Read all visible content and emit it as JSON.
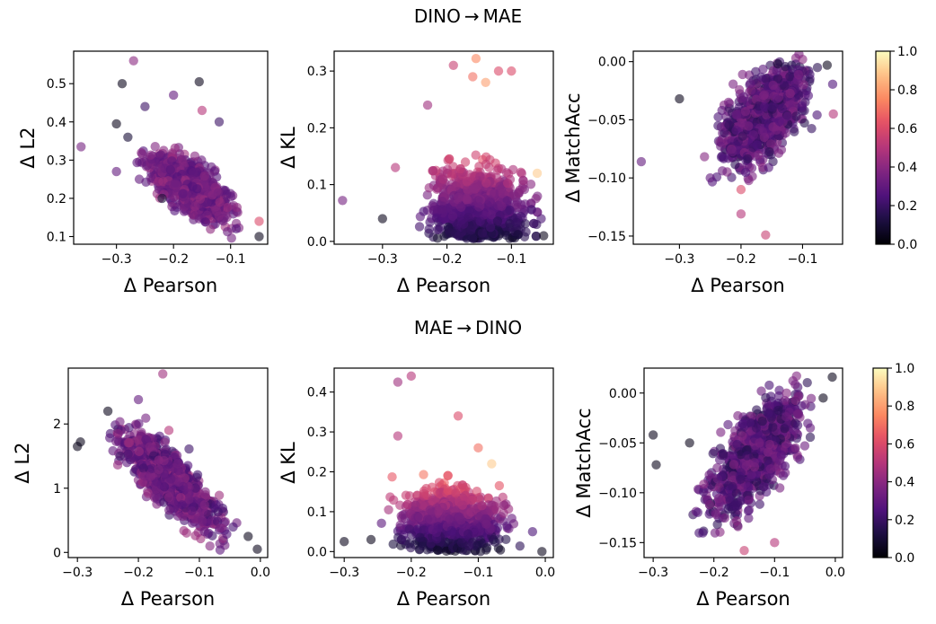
{
  "rows": [
    {
      "title": "DINO → MAE",
      "colorbar_ticks": [
        "0.0",
        "0.2",
        "0.4",
        "0.6",
        "0.8",
        "1.0"
      ]
    },
    {
      "title": "MAE → DINO",
      "colorbar_ticks": [
        "0.0",
        "0.2",
        "0.4",
        "0.6",
        "0.8",
        "1.0"
      ]
    }
  ],
  "chart_data": [
    {
      "type": "scatter",
      "row": 0,
      "title": "DINO → MAE",
      "xlabel": "Δ Pearson",
      "ylabel": "Δ L2",
      "xlim": [
        -0.375,
        -0.035
      ],
      "ylim": [
        0.08,
        0.585
      ],
      "xticks": [
        {
          "v": -0.3,
          "label": "−0.3"
        },
        {
          "v": -0.2,
          "label": "−0.2"
        },
        {
          "v": -0.1,
          "label": "−0.1"
        }
      ],
      "yticks": [
        {
          "v": 0.1,
          "label": "0.1"
        },
        {
          "v": 0.2,
          "label": "0.2"
        },
        {
          "v": 0.3,
          "label": "0.3"
        },
        {
          "v": 0.4,
          "label": "0.4"
        },
        {
          "v": 0.5,
          "label": "0.5"
        }
      ],
      "colormap": "magma",
      "color_range": [
        0.0,
        1.0
      ],
      "marker_alpha": 0.6,
      "points": [
        {
          "x": -0.362,
          "y": 0.335,
          "c": 0.35
        },
        {
          "x": -0.27,
          "y": 0.56,
          "c": 0.4
        },
        {
          "x": -0.29,
          "y": 0.5,
          "c": 0.05
        },
        {
          "x": -0.3,
          "y": 0.395,
          "c": 0.05
        },
        {
          "x": -0.155,
          "y": 0.505,
          "c": 0.05
        },
        {
          "x": -0.28,
          "y": 0.36,
          "c": 0.1
        },
        {
          "x": -0.25,
          "y": 0.44,
          "c": 0.2
        },
        {
          "x": -0.2,
          "y": 0.47,
          "c": 0.3
        },
        {
          "x": -0.15,
          "y": 0.43,
          "c": 0.5
        },
        {
          "x": -0.12,
          "y": 0.4,
          "c": 0.2
        },
        {
          "x": -0.05,
          "y": 0.1,
          "c": 0.05
        },
        {
          "x": -0.05,
          "y": 0.14,
          "c": 0.6
        },
        {
          "x": -0.22,
          "y": 0.2,
          "c": 0.1
        },
        {
          "x": -0.26,
          "y": 0.25,
          "c": 0.3
        },
        {
          "x": -0.3,
          "y": 0.27,
          "c": 0.3
        }
      ]
    },
    {
      "type": "scatter",
      "row": 0,
      "xlabel": "Δ Pearson",
      "ylabel": "Δ KL",
      "xlim": [
        -0.375,
        -0.035
      ],
      "ylim": [
        -0.005,
        0.335
      ],
      "xticks": [
        {
          "v": -0.3,
          "label": "−0.3"
        },
        {
          "v": -0.2,
          "label": "−0.2"
        },
        {
          "v": -0.1,
          "label": "−0.1"
        }
      ],
      "yticks": [
        {
          "v": 0.0,
          "label": "0.0"
        },
        {
          "v": 0.1,
          "label": "0.1"
        },
        {
          "v": 0.2,
          "label": "0.2"
        },
        {
          "v": 0.3,
          "label": "0.3"
        }
      ],
      "colormap": "magma",
      "color_range": [
        0.0,
        1.0
      ],
      "marker_alpha": 0.6,
      "points": [
        {
          "x": -0.362,
          "y": 0.072,
          "c": 0.35
        },
        {
          "x": -0.155,
          "y": 0.322,
          "c": 0.75
        },
        {
          "x": -0.19,
          "y": 0.31,
          "c": 0.55
        },
        {
          "x": -0.16,
          "y": 0.29,
          "c": 0.7
        },
        {
          "x": -0.12,
          "y": 0.3,
          "c": 0.6
        },
        {
          "x": -0.14,
          "y": 0.28,
          "c": 0.8
        },
        {
          "x": -0.23,
          "y": 0.24,
          "c": 0.45
        },
        {
          "x": -0.1,
          "y": 0.3,
          "c": 0.6
        },
        {
          "x": -0.06,
          "y": 0.12,
          "c": 0.9
        },
        {
          "x": -0.3,
          "y": 0.04,
          "c": 0.05
        },
        {
          "x": -0.05,
          "y": 0.01,
          "c": 0.05
        },
        {
          "x": -0.28,
          "y": 0.13,
          "c": 0.5
        }
      ]
    },
    {
      "type": "scatter",
      "row": 0,
      "xlabel": "Δ Pearson",
      "ylabel": "Δ MatchAcc",
      "xlim": [
        -0.375,
        -0.035
      ],
      "ylim": [
        -0.157,
        0.009
      ],
      "xticks": [
        {
          "v": -0.3,
          "label": "−0.3"
        },
        {
          "v": -0.2,
          "label": "−0.2"
        },
        {
          "v": -0.1,
          "label": "−0.1"
        }
      ],
      "yticks": [
        {
          "v": -0.15,
          "label": "−0.15"
        },
        {
          "v": -0.1,
          "label": "−0.10"
        },
        {
          "v": -0.05,
          "label": "−0.05"
        },
        {
          "v": 0.0,
          "label": "0.00"
        }
      ],
      "colormap": "magma",
      "color_range": [
        0.0,
        1.0
      ],
      "marker_alpha": 0.6,
      "points": [
        {
          "x": -0.362,
          "y": -0.086,
          "c": 0.3
        },
        {
          "x": -0.16,
          "y": -0.149,
          "c": 0.55
        },
        {
          "x": -0.2,
          "y": -0.131,
          "c": 0.5
        },
        {
          "x": -0.3,
          "y": -0.032,
          "c": 0.05
        },
        {
          "x": -0.14,
          "y": -0.002,
          "c": 0.1
        },
        {
          "x": -0.06,
          "y": -0.003,
          "c": 0.05
        },
        {
          "x": -0.1,
          "y": 0.002,
          "c": 0.4
        },
        {
          "x": -0.05,
          "y": -0.045,
          "c": 0.5
        },
        {
          "x": -0.2,
          "y": -0.11,
          "c": 0.6
        },
        {
          "x": -0.25,
          "y": -0.1,
          "c": 0.3
        }
      ]
    },
    {
      "type": "scatter",
      "row": 1,
      "title": "MAE → DINO",
      "xlabel": "Δ Pearson",
      "ylabel": "Δ L2",
      "xlim": [
        -0.315,
        0.012
      ],
      "ylim": [
        -0.08,
        2.87
      ],
      "xticks": [
        {
          "v": -0.3,
          "label": "−0.3"
        },
        {
          "v": -0.2,
          "label": "−0.2"
        },
        {
          "v": -0.1,
          "label": "−0.1"
        },
        {
          "v": 0.0,
          "label": "0.0"
        }
      ],
      "yticks": [
        {
          "v": 0,
          "label": "0"
        },
        {
          "v": 1,
          "label": "1"
        },
        {
          "v": 2,
          "label": "2"
        }
      ],
      "colormap": "magma",
      "color_range": [
        0.0,
        1.0
      ],
      "marker_alpha": 0.6,
      "points": [
        {
          "x": -0.3,
          "y": 1.65,
          "c": 0.05
        },
        {
          "x": -0.295,
          "y": 1.72,
          "c": 0.05
        },
        {
          "x": -0.16,
          "y": 2.78,
          "c": 0.45
        },
        {
          "x": -0.005,
          "y": 0.05,
          "c": 0.05
        },
        {
          "x": -0.02,
          "y": 0.25,
          "c": 0.05
        },
        {
          "x": -0.25,
          "y": 2.2,
          "c": 0.05
        },
        {
          "x": -0.2,
          "y": 2.38,
          "c": 0.3
        },
        {
          "x": -0.23,
          "y": 1.5,
          "c": 0.2
        },
        {
          "x": -0.15,
          "y": 1.9,
          "c": 0.5
        }
      ]
    },
    {
      "type": "scatter",
      "row": 1,
      "xlabel": "Δ Pearson",
      "ylabel": "Δ KL",
      "xlim": [
        -0.315,
        0.012
      ],
      "ylim": [
        -0.015,
        0.46
      ],
      "xticks": [
        {
          "v": -0.3,
          "label": "−0.3"
        },
        {
          "v": -0.2,
          "label": "−0.2"
        },
        {
          "v": -0.1,
          "label": "−0.1"
        },
        {
          "v": 0.0,
          "label": "0.0"
        }
      ],
      "yticks": [
        {
          "v": 0.0,
          "label": "0.0"
        },
        {
          "v": 0.1,
          "label": "0.1"
        },
        {
          "v": 0.2,
          "label": "0.2"
        },
        {
          "v": 0.3,
          "label": "0.3"
        },
        {
          "v": 0.4,
          "label": "0.4"
        }
      ],
      "colormap": "magma",
      "color_range": [
        0.0,
        1.0
      ],
      "marker_alpha": 0.6,
      "points": [
        {
          "x": -0.3,
          "y": 0.025,
          "c": 0.05
        },
        {
          "x": -0.22,
          "y": 0.425,
          "c": 0.45
        },
        {
          "x": -0.2,
          "y": 0.44,
          "c": 0.5
        },
        {
          "x": -0.13,
          "y": 0.34,
          "c": 0.6
        },
        {
          "x": -0.1,
          "y": 0.26,
          "c": 0.7
        },
        {
          "x": -0.08,
          "y": 0.22,
          "c": 0.9
        },
        {
          "x": -0.005,
          "y": 0.0,
          "c": 0.05
        },
        {
          "x": -0.26,
          "y": 0.03,
          "c": 0.05
        },
        {
          "x": -0.22,
          "y": 0.29,
          "c": 0.5
        }
      ]
    },
    {
      "type": "scatter",
      "row": 1,
      "xlabel": "Δ Pearson",
      "ylabel": "Δ MatchAcc",
      "xlim": [
        -0.315,
        0.012
      ],
      "ylim": [
        -0.165,
        0.025
      ],
      "xticks": [
        {
          "v": -0.3,
          "label": "−0.3"
        },
        {
          "v": -0.2,
          "label": "−0.2"
        },
        {
          "v": -0.1,
          "label": "−0.1"
        },
        {
          "v": 0.0,
          "label": "0.0"
        }
      ],
      "yticks": [
        {
          "v": -0.15,
          "label": "−0.15"
        },
        {
          "v": -0.1,
          "label": "−0.10"
        },
        {
          "v": -0.05,
          "label": "−0.05"
        },
        {
          "v": 0.0,
          "label": "0.00"
        }
      ],
      "colormap": "magma",
      "color_range": [
        0.0,
        1.0
      ],
      "marker_alpha": 0.6,
      "points": [
        {
          "x": -0.3,
          "y": -0.042,
          "c": 0.05
        },
        {
          "x": -0.295,
          "y": -0.072,
          "c": 0.05
        },
        {
          "x": -0.005,
          "y": 0.016,
          "c": 0.05
        },
        {
          "x": -0.1,
          "y": -0.15,
          "c": 0.5
        },
        {
          "x": -0.15,
          "y": -0.158,
          "c": 0.55
        },
        {
          "x": -0.24,
          "y": -0.05,
          "c": 0.05
        },
        {
          "x": -0.02,
          "y": -0.005,
          "c": 0.05
        }
      ]
    }
  ]
}
